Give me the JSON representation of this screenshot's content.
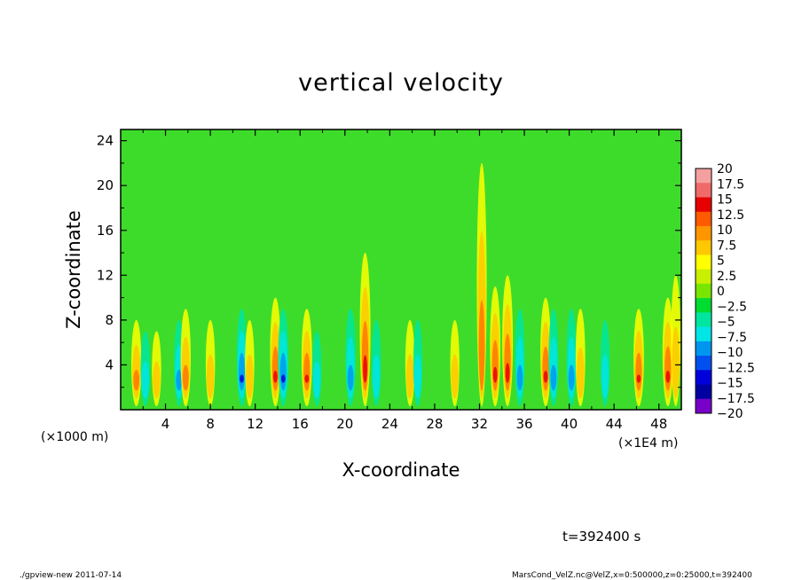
{
  "chart_data": {
    "type": "heatmap",
    "title": "vertical velocity",
    "xlabel": "X-coordinate",
    "ylabel": "Z-coordinate",
    "x_unit": "(×1000 m)",
    "x_unit2": "(×1E4 m)",
    "xlim": [
      0,
      50
    ],
    "ylim": [
      0,
      25
    ],
    "x_ticks": [
      "4",
      "8",
      "12",
      "16",
      "20",
      "24",
      "28",
      "32",
      "36",
      "40",
      "44",
      "48"
    ],
    "y_ticks": [
      "4",
      "8",
      "12",
      "16",
      "20",
      "24"
    ],
    "x_tick_values": [
      4,
      8,
      12,
      16,
      20,
      24,
      28,
      32,
      36,
      40,
      44,
      48
    ],
    "y_tick_values": [
      4,
      8,
      12,
      16,
      20,
      24
    ],
    "colorbar": {
      "labels": [
        "20",
        "17.5",
        "15",
        "12.5",
        "10",
        "7.5",
        "5",
        "2.5",
        "0",
        "−2.5",
        "−5",
        "−7.5",
        "−10",
        "−12.5",
        "−15",
        "−17.5",
        "−20"
      ],
      "colors": [
        "#f5a0a0",
        "#f06a6a",
        "#e60000",
        "#ff5a00",
        "#ff9600",
        "#ffc800",
        "#ffff00",
        "#c8f000",
        "#78e600",
        "#00dc32",
        "#00e6a0",
        "#00e6e6",
        "#0096f0",
        "#0050f0",
        "#0000dc",
        "#0000a0",
        "#7800c8"
      ]
    },
    "time_label": "t=392400 s",
    "footer_left": "./gpview-new   2011-07-14",
    "footer_right": "MarsCond_VelZ.nc@VelZ,x=0:500000,z=0:25000,t=392400",
    "features": [
      {
        "x": 1.4,
        "sign": 1,
        "amp": 0.8,
        "top": 8
      },
      {
        "x": 2.2,
        "sign": -1,
        "amp": 0.6,
        "top": 7
      },
      {
        "x": 3.2,
        "sign": 1,
        "amp": 0.5,
        "top": 7
      },
      {
        "x": 5.2,
        "sign": -1,
        "amp": 0.7,
        "top": 8
      },
      {
        "x": 5.8,
        "sign": 1,
        "amp": 0.8,
        "top": 9
      },
      {
        "x": 8.0,
        "sign": 1,
        "amp": 0.5,
        "top": 8
      },
      {
        "x": 10.8,
        "sign": -1,
        "amp": 0.9,
        "top": 9
      },
      {
        "x": 11.5,
        "sign": 1,
        "amp": 0.5,
        "top": 8
      },
      {
        "x": 13.8,
        "sign": 1,
        "amp": 1.0,
        "top": 10
      },
      {
        "x": 14.5,
        "sign": -1,
        "amp": 0.9,
        "top": 9
      },
      {
        "x": 16.6,
        "sign": 1,
        "amp": 0.95,
        "top": 9
      },
      {
        "x": 17.5,
        "sign": -1,
        "amp": 0.5,
        "top": 7
      },
      {
        "x": 20.5,
        "sign": -1,
        "amp": 0.8,
        "top": 9
      },
      {
        "x": 21.8,
        "sign": 1,
        "amp": 1.0,
        "top": 14
      },
      {
        "x": 22.8,
        "sign": -1,
        "amp": 0.5,
        "top": 8
      },
      {
        "x": 25.8,
        "sign": 1,
        "amp": 0.5,
        "top": 8
      },
      {
        "x": 26.5,
        "sign": -1,
        "amp": 0.45,
        "top": 8
      },
      {
        "x": 29.8,
        "sign": 1,
        "amp": 0.45,
        "top": 8
      },
      {
        "x": 32.2,
        "sign": 1,
        "amp": 0.7,
        "top": 22
      },
      {
        "x": 33.4,
        "sign": 1,
        "amp": 0.9,
        "top": 11
      },
      {
        "x": 34.5,
        "sign": 1,
        "amp": 1.0,
        "top": 12
      },
      {
        "x": 35.6,
        "sign": -1,
        "amp": 0.7,
        "top": 9
      },
      {
        "x": 37.9,
        "sign": 1,
        "amp": 0.95,
        "top": 10
      },
      {
        "x": 38.6,
        "sign": -1,
        "amp": 0.7,
        "top": 9
      },
      {
        "x": 40.2,
        "sign": -1,
        "amp": 0.8,
        "top": 9
      },
      {
        "x": 41.0,
        "sign": 1,
        "amp": 0.6,
        "top": 9
      },
      {
        "x": 43.2,
        "sign": -1,
        "amp": 0.5,
        "top": 8
      },
      {
        "x": 46.2,
        "sign": 1,
        "amp": 0.9,
        "top": 9
      },
      {
        "x": 48.8,
        "sign": 1,
        "amp": 1.0,
        "top": 10
      },
      {
        "x": 49.5,
        "sign": 1,
        "amp": 0.6,
        "top": 12
      }
    ]
  }
}
